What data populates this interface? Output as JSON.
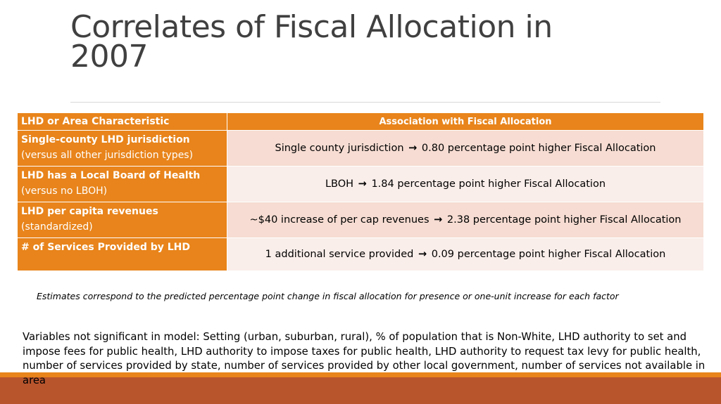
{
  "slide": {
    "title": "Correlates of Fiscal Allocation in 2007",
    "table": {
      "header_left": "LHD or Area Characteristic",
      "header_right": "Association with Fiscal Allocation",
      "rows": [
        {
          "characteristic": "Single-county LHD jurisdiction",
          "detail": "(versus all other jurisdiction types)",
          "assoc_left": "Single county jurisdiction",
          "arrow": "→",
          "assoc_right": "0.80 percentage point higher Fiscal Allocation"
        },
        {
          "characteristic": "LHD has a Local Board of Health",
          "detail": "(versus no LBOH)",
          "assoc_left": "LBOH",
          "arrow": "→",
          "assoc_right": "1.84 percentage point higher Fiscal Allocation"
        },
        {
          "characteristic": "LHD per capita revenues",
          "detail": "(standardized)",
          "assoc_left": "~$40 increase of per cap revenues",
          "arrow": "→",
          "assoc_right": "2.38 percentage point higher Fiscal Allocation"
        },
        {
          "characteristic": "# of Services Provided by LHD",
          "detail": "",
          "assoc_left": "1 additional service provided",
          "arrow": "→",
          "assoc_right": "0.09 percentage point higher Fiscal Allocation"
        }
      ]
    },
    "note": "Estimates correspond to the predicted percentage point change in fiscal allocation for presence or one-unit increase for each factor",
    "variables_text": "Variables not significant in model: Setting (urban, suburban, rural), % of population that is Non-White, LHD authority to set and impose fees for public health, LHD authority to impose taxes for public health, LHD authority to request tax levy for public health, number of services provided by state, number of services provided by other local government, number of services not available in area"
  },
  "colors": {
    "accent_orange": "#e8841b",
    "band_rust": "#b9552d",
    "row_odd": "#f6dcd2",
    "row_even": "#faeeea",
    "title_gray": "#404040"
  }
}
